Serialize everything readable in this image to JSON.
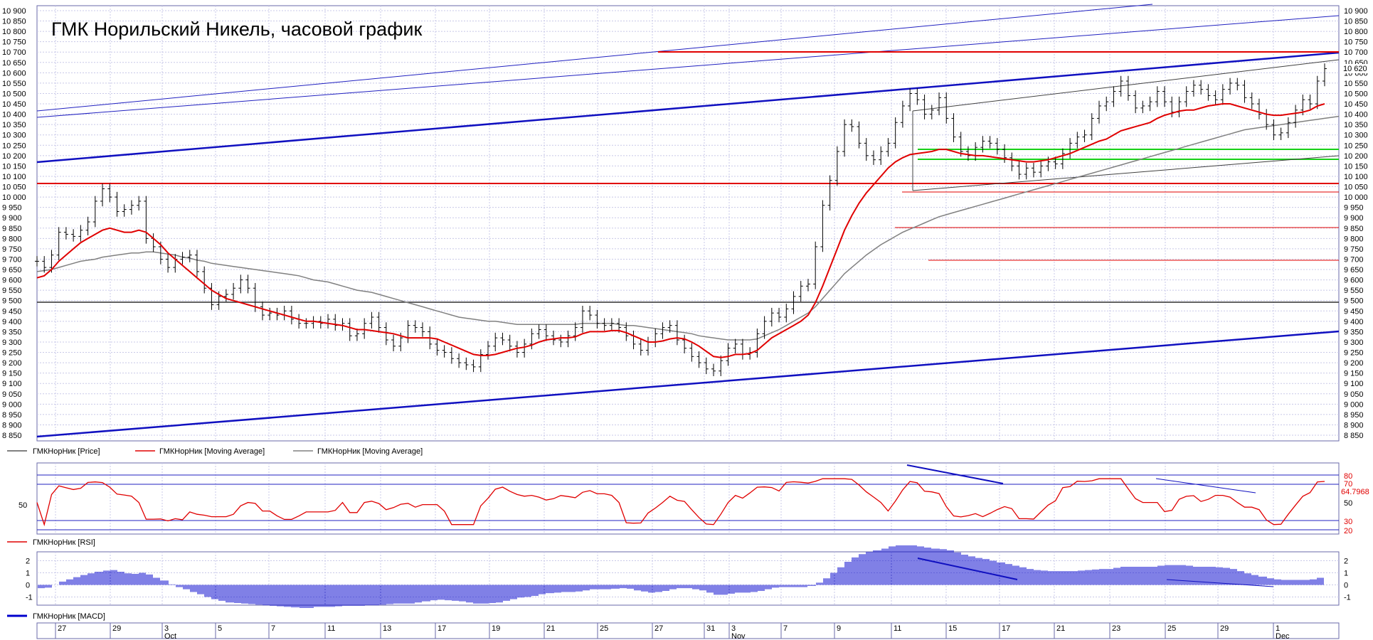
{
  "chart_data": {
    "type": "line",
    "title": "ГМК Норильский Никель, часовой график",
    "price_panel": {
      "ylim": [
        8850,
        10900
      ],
      "y_ticks": [
        "10 900",
        "10 850",
        "10 800",
        "10 750",
        "10 700",
        "10 650",
        "10 600",
        "10 550",
        "10 500",
        "10 450",
        "10 400",
        "10 350",
        "10 300",
        "10 250",
        "10 200",
        "10 150",
        "10 100",
        "10 050",
        "10 000",
        "9 950",
        "9 900",
        "9 850",
        "9 800",
        "9 750",
        "9 700",
        "9 650",
        "9 600",
        "9 550",
        "9 500",
        "9 450",
        "9 400",
        "9 350",
        "9 300",
        "9 250",
        "9 200",
        "9 150",
        "9 100",
        "9 050",
        "9 000",
        "8 950",
        "8 900",
        "8 850"
      ],
      "last_price_label": "10 620",
      "series": [
        {
          "name": "ГМКНорНик [Price]",
          "color": "#000000",
          "kind": "bars",
          "values": [
            9690,
            9660,
            9720,
            9830,
            9820,
            9810,
            9840,
            9880,
            9980,
            10040,
            10000,
            9930,
            9940,
            9960,
            9980,
            9800,
            9760,
            9700,
            9660,
            9700,
            9710,
            9720,
            9640,
            9560,
            9480,
            9520,
            9530,
            9560,
            9600,
            9560,
            9470,
            9430,
            9440,
            9430,
            9450,
            9410,
            9390,
            9390,
            9400,
            9390,
            9410,
            9380,
            9390,
            9330,
            9340,
            9390,
            9420,
            9370,
            9310,
            9280,
            9320,
            9380,
            9370,
            9350,
            9290,
            9260,
            9250,
            9220,
            9200,
            9190,
            9180,
            9240,
            9280,
            9320,
            9310,
            9280,
            9250,
            9290,
            9340,
            9360,
            9330,
            9310,
            9300,
            9330,
            9370,
            9450,
            9430,
            9390,
            9380,
            9390,
            9370,
            9330,
            9290,
            9260,
            9300,
            9340,
            9370,
            9380,
            9310,
            9270,
            9230,
            9200,
            9170,
            9160,
            9210,
            9270,
            9290,
            9240,
            9250,
            9340,
            9400,
            9440,
            9420,
            9460,
            9520,
            9570,
            9580,
            9760,
            9960,
            10080,
            10220,
            10350,
            10340,
            10260,
            10200,
            10180,
            10220,
            10260,
            10360,
            10440,
            10500,
            10470,
            10400,
            10420,
            10480,
            10380,
            10290,
            10220,
            10200,
            10240,
            10270,
            10260,
            10230,
            10190,
            10150,
            10110,
            10140,
            10120,
            10150,
            10170,
            10160,
            10210,
            10260,
            10290,
            10300,
            10380,
            10440,
            10460,
            10510,
            10560,
            10490,
            10430,
            10440,
            10460,
            10510,
            10460,
            10410,
            10460,
            10510,
            10540,
            10520,
            10490,
            10470,
            10520,
            10550,
            10540,
            10480,
            10450,
            10400,
            10350,
            10300,
            10310,
            10360,
            10420,
            10470,
            10450,
            10560,
            10620
          ]
        },
        {
          "name": "ГМКНорНик [Moving Average]",
          "color": "#e00000",
          "kind": "line",
          "values": [
            9610,
            9620,
            9650,
            9690,
            9720,
            9750,
            9780,
            9800,
            9820,
            9840,
            9850,
            9840,
            9830,
            9830,
            9840,
            9830,
            9800,
            9770,
            9730,
            9700,
            9670,
            9640,
            9610,
            9580,
            9550,
            9530,
            9510,
            9500,
            9490,
            9480,
            9470,
            9460,
            9450,
            9440,
            9430,
            9420,
            9410,
            9400,
            9400,
            9395,
            9390,
            9385,
            9380,
            9370,
            9360,
            9360,
            9355,
            9350,
            9345,
            9340,
            9330,
            9320,
            9320,
            9320,
            9320,
            9315,
            9300,
            9285,
            9270,
            9255,
            9240,
            9235,
            9235,
            9240,
            9250,
            9260,
            9270,
            9275,
            9285,
            9300,
            9310,
            9315,
            9320,
            9320,
            9325,
            9340,
            9350,
            9350,
            9350,
            9355,
            9355,
            9345,
            9330,
            9315,
            9300,
            9300,
            9305,
            9315,
            9320,
            9315,
            9300,
            9280,
            9255,
            9230,
            9225,
            9230,
            9240,
            9240,
            9245,
            9260,
            9290,
            9320,
            9340,
            9360,
            9380,
            9400,
            9430,
            9490,
            9570,
            9660,
            9750,
            9840,
            9910,
            9970,
            10020,
            10060,
            10100,
            10140,
            10170,
            10190,
            10205,
            10210,
            10215,
            10220,
            10230,
            10230,
            10220,
            10210,
            10205,
            10200,
            10200,
            10195,
            10190,
            10185,
            10180,
            10175,
            10170,
            10170,
            10175,
            10180,
            10190,
            10200,
            10210,
            10225,
            10240,
            10255,
            10270,
            10280,
            10300,
            10320,
            10330,
            10340,
            10350,
            10360,
            10380,
            10395,
            10405,
            10415,
            10420,
            10420,
            10430,
            10440,
            10445,
            10450,
            10450,
            10440,
            10430,
            10420,
            10410,
            10400,
            10395,
            10395,
            10400,
            10405,
            10410,
            10420,
            10440,
            10450
          ]
        },
        {
          "name": "ГМКНорНик [Moving Average]",
          "color": "#808080",
          "kind": "line",
          "values": [
            9640,
            9645,
            9650,
            9660,
            9670,
            9680,
            9690,
            9695,
            9700,
            9710,
            9715,
            9720,
            9725,
            9730,
            9730,
            9735,
            9735,
            9730,
            9725,
            9720,
            9710,
            9705,
            9695,
            9690,
            9680,
            9675,
            9670,
            9665,
            9660,
            9655,
            9650,
            9645,
            9640,
            9635,
            9630,
            9625,
            9620,
            9610,
            9600,
            9595,
            9590,
            9580,
            9570,
            9560,
            9550,
            9545,
            9540,
            9530,
            9520,
            9510,
            9500,
            9490,
            9480,
            9470,
            9460,
            9450,
            9440,
            9430,
            9420,
            9415,
            9410,
            9405,
            9400,
            9400,
            9395,
            9390,
            9385,
            9385,
            9385,
            9385,
            9385,
            9385,
            9385,
            9385,
            9385,
            9390,
            9390,
            9390,
            9390,
            9390,
            9385,
            9380,
            9380,
            9375,
            9370,
            9365,
            9360,
            9355,
            9350,
            9345,
            9340,
            9330,
            9325,
            9320,
            9315,
            9310,
            9310,
            9310,
            9310,
            9315,
            9330,
            9345,
            9360,
            9380,
            9400,
            9420,
            9440,
            9470,
            9510,
            9550,
            9590,
            9630,
            9660,
            9690,
            9720,
            9745,
            9770,
            9790,
            9810,
            9830,
            9845,
            9860,
            9875,
            9890,
            9905,
            9915,
            9925,
            9935,
            9945,
            9955,
            9965,
            9975,
            9985,
            9995,
            10005,
            10015,
            10025,
            10035,
            10045,
            10055,
            10065,
            10075,
            10085,
            10095,
            10105,
            10115,
            10125,
            10135,
            10145,
            10155,
            10165,
            10175,
            10185,
            10195,
            10205,
            10215,
            10225,
            10235,
            10245,
            10255,
            10265,
            10275,
            10285,
            10295,
            10305,
            10315,
            10325,
            10330,
            10335,
            10340,
            10345,
            10350,
            10355,
            10360,
            10365,
            10370,
            10375,
            10380,
            10385,
            10390
          ]
        }
      ]
    },
    "rsi_panel": {
      "series_name": "ГМКНорНик [RSI]",
      "color": "#e00000",
      "y_ticks_left": [
        "50"
      ],
      "y_ticks_right": [
        "80",
        "70",
        "50",
        "30",
        "20"
      ],
      "last_value_label": "64.7968",
      "levels": [
        80,
        70,
        30,
        20
      ]
    },
    "macd_panel": {
      "series_name": "ГМКНорНик [MACD]",
      "color": "#0000cc",
      "ylim": [
        -1.5,
        2.5
      ],
      "y_ticks": [
        "2",
        "1",
        "0",
        "-1"
      ]
    },
    "x_axis": {
      "day_labels": [
        "27",
        "29",
        "3",
        "5",
        "7",
        "11",
        "13",
        "17",
        "19",
        "21",
        "25",
        "27",
        "31",
        "3",
        "7",
        "9",
        "11",
        "15",
        "17",
        "21",
        "23",
        "25",
        "29",
        "1"
      ],
      "month_labels": [
        "Oct",
        "Nov",
        "Dec"
      ]
    }
  }
}
